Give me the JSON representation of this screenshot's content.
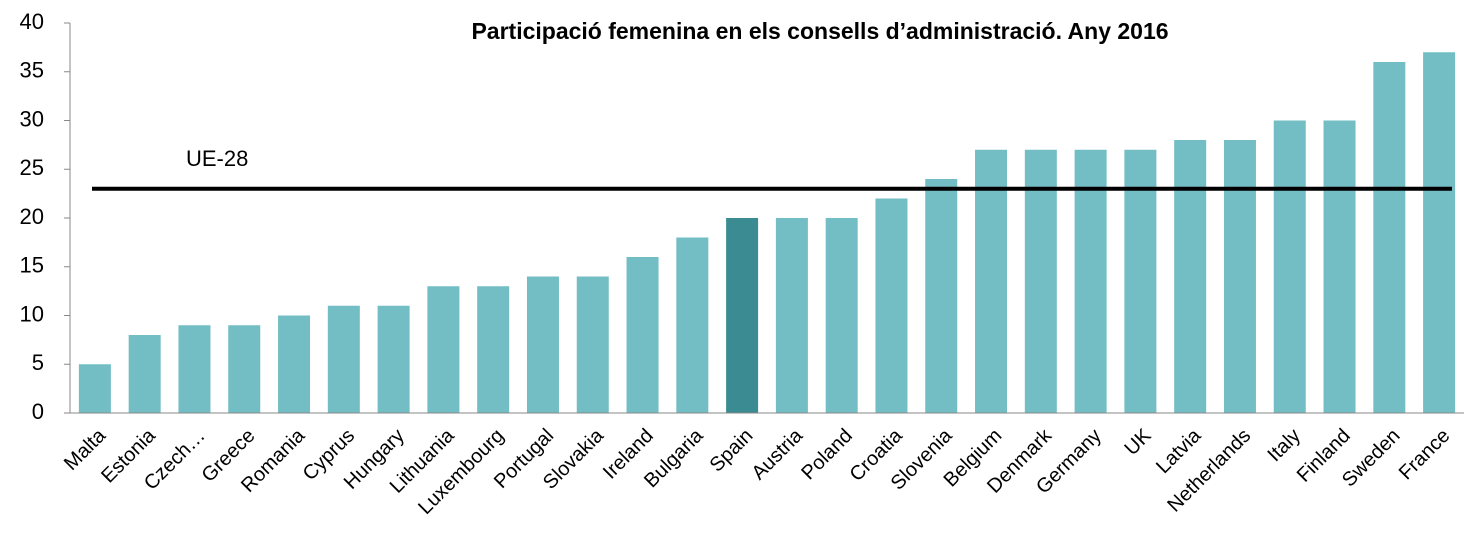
{
  "chart_data": {
    "type": "bar",
    "title": "Participació femenina en els consells d’administració. Any 2016",
    "categories": [
      "Malta",
      "Estonia",
      "Czech…",
      "Greece",
      "Romania",
      "Cyprus",
      "Hungary",
      "Lithuania",
      "Luxembourg",
      "Portugal",
      "Slovakia",
      "Ireland",
      "Bulgaria",
      "Spain",
      "Austria",
      "Poland",
      "Croatia",
      "Slovenia",
      "Belgium",
      "Denmark",
      "Germany",
      "UK",
      "Latvia",
      "Netherlands",
      "Italy",
      "Finland",
      "Sweden",
      "France"
    ],
    "values": [
      5,
      8,
      9,
      9,
      10,
      11,
      11,
      13,
      13,
      14,
      14,
      16,
      18,
      20,
      20,
      20,
      22,
      24,
      27,
      27,
      27,
      27,
      28,
      28,
      30,
      30,
      36,
      37
    ],
    "colors": [
      "#72bec4",
      "#72bec4",
      "#72bec4",
      "#72bec4",
      "#72bec4",
      "#72bec4",
      "#72bec4",
      "#72bec4",
      "#72bec4",
      "#72bec4",
      "#72bec4",
      "#72bec4",
      "#72bec4",
      "#3a8c92",
      "#72bec4",
      "#72bec4",
      "#72bec4",
      "#72bec4",
      "#72bec4",
      "#72bec4",
      "#72bec4",
      "#72bec4",
      "#72bec4",
      "#72bec4",
      "#72bec4",
      "#72bec4",
      "#72bec4",
      "#72bec4"
    ],
    "reference_line": {
      "label": "UE-28",
      "value": 23,
      "color": "#000000"
    },
    "ylim": [
      0,
      40
    ],
    "yticks": [
      0,
      5,
      10,
      15,
      20,
      25,
      30,
      35,
      40
    ],
    "grid": false
  }
}
